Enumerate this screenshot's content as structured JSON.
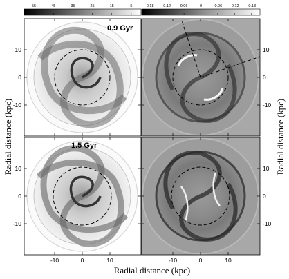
{
  "colorbar_left": {
    "ticks": [
      "55",
      "45",
      "35",
      "25",
      "15",
      "5"
    ]
  },
  "colorbar_right": {
    "ticks": [
      "0.18",
      "0.12",
      "0.06",
      "0",
      "-0.06",
      "-0.12",
      "-0.18"
    ]
  },
  "panels": {
    "top_left": {
      "label": "0.9 Gyr"
    },
    "bottom_left": {
      "label": "1.5 Gyr"
    }
  },
  "axes": {
    "y_label_left": "Radial distance (kpc)",
    "y_label_right": "Radial distance (kpc)",
    "x_label": "Radial distance (kpc)",
    "y_ticks_top": [
      "10",
      "0",
      "-10"
    ],
    "y_ticks_bottom": [
      "10",
      "0",
      "-10"
    ],
    "x_ticks": [
      "-10",
      "0",
      "10"
    ]
  }
}
